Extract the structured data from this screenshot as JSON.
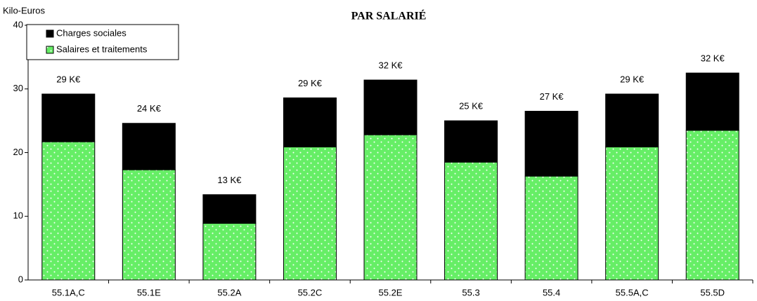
{
  "chart_data": {
    "type": "stacked_bar",
    "title": "PAR SALARIÉ",
    "y_label": "Kilo-Euros",
    "categories": [
      "55.1A,C",
      "55.1E",
      "55.2A",
      "55.2C",
      "55.2E",
      "55.3",
      "55.4",
      "55.5A,C",
      "55.5D"
    ],
    "series": [
      {
        "name": "Salaires et traitements",
        "color": "#66ee66",
        "values": [
          21.7,
          17.3,
          8.9,
          20.9,
          22.8,
          18.5,
          16.3,
          20.9,
          23.5
        ]
      },
      {
        "name": "Charges sociales",
        "color": "#000000",
        "values": [
          7.5,
          7.3,
          4.5,
          7.7,
          8.6,
          6.5,
          10.2,
          8.3,
          9.0
        ]
      }
    ],
    "annotations": [
      "29 K€",
      "24 K€",
      "13 K€",
      "29 K€",
      "32 K€",
      "25 K€",
      "27 K€",
      "29 K€",
      "32 K€"
    ],
    "ylim": [
      0,
      40
    ],
    "yticks": [
      0,
      10,
      20,
      30,
      40
    ],
    "legend": "upper left"
  }
}
